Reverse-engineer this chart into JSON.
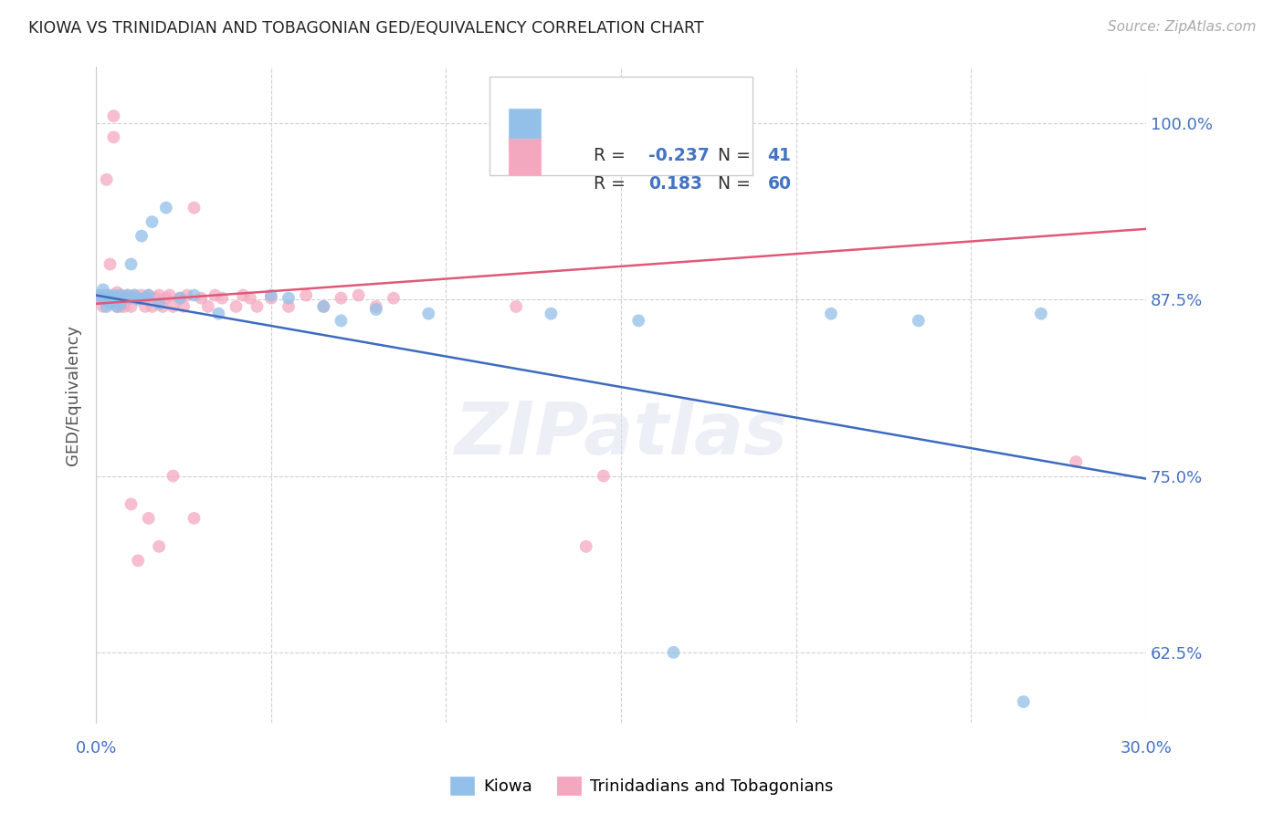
{
  "title": "KIOWA VS TRINIDADIAN AND TOBAGONIAN GED/EQUIVALENCY CORRELATION CHART",
  "source": "Source: ZipAtlas.com",
  "ylabel": "GED/Equivalency",
  "yticks": [
    "62.5%",
    "75.0%",
    "87.5%",
    "100.0%"
  ],
  "legend_label1": "Kiowa",
  "legend_label2": "Trinidadians and Tobagonians",
  "r1": "-0.237",
  "n1": "41",
  "r2": "0.183",
  "n2": "60",
  "color_blue": "#92c0e8",
  "color_pink": "#f4a8c0",
  "color_blue_line": "#3d6bbf",
  "color_pink_line": "#e05878",
  "xlim": [
    0.0,
    0.3
  ],
  "ylim": [
    0.575,
    1.04
  ],
  "ytick_vals": [
    0.625,
    0.75,
    0.875,
    1.0
  ],
  "blue_x": [
    0.001,
    0.002,
    0.002,
    0.003,
    0.003,
    0.004,
    0.004,
    0.005,
    0.005,
    0.006,
    0.006,
    0.007,
    0.007,
    0.008,
    0.009,
    0.01,
    0.01,
    0.011,
    0.012,
    0.013,
    0.014,
    0.015,
    0.016,
    0.018,
    0.02,
    0.024,
    0.028,
    0.035,
    0.05,
    0.055,
    0.065,
    0.07,
    0.08,
    0.095,
    0.13,
    0.155,
    0.165,
    0.21,
    0.235,
    0.265,
    0.27
  ],
  "blue_y": [
    0.878,
    0.875,
    0.882,
    0.87,
    0.878,
    0.876,
    0.872,
    0.875,
    0.878,
    0.876,
    0.87,
    0.878,
    0.872,
    0.876,
    0.878,
    0.9,
    0.876,
    0.878,
    0.875,
    0.92,
    0.876,
    0.878,
    0.93,
    0.872,
    0.94,
    0.876,
    0.878,
    0.865,
    0.878,
    0.876,
    0.87,
    0.86,
    0.868,
    0.865,
    0.865,
    0.86,
    0.625,
    0.865,
    0.86,
    0.59,
    0.865
  ],
  "pink_x": [
    0.001,
    0.002,
    0.002,
    0.003,
    0.004,
    0.004,
    0.005,
    0.005,
    0.006,
    0.006,
    0.007,
    0.007,
    0.008,
    0.008,
    0.009,
    0.01,
    0.01,
    0.011,
    0.012,
    0.013,
    0.014,
    0.015,
    0.015,
    0.016,
    0.017,
    0.018,
    0.019,
    0.02,
    0.021,
    0.022,
    0.024,
    0.025,
    0.026,
    0.028,
    0.03,
    0.032,
    0.034,
    0.036,
    0.04,
    0.042,
    0.044,
    0.046,
    0.05,
    0.055,
    0.06,
    0.065,
    0.07,
    0.075,
    0.08,
    0.085,
    0.01,
    0.012,
    0.015,
    0.018,
    0.022,
    0.028,
    0.12,
    0.14,
    0.145,
    0.28
  ],
  "pink_y": [
    0.876,
    0.878,
    0.87,
    0.96,
    0.878,
    0.9,
    1.005,
    0.99,
    0.88,
    0.87,
    0.878,
    0.87,
    0.876,
    0.87,
    0.878,
    0.876,
    0.87,
    0.878,
    0.876,
    0.878,
    0.87,
    0.876,
    0.878,
    0.87,
    0.876,
    0.878,
    0.87,
    0.876,
    0.878,
    0.87,
    0.876,
    0.87,
    0.878,
    0.94,
    0.876,
    0.87,
    0.878,
    0.876,
    0.87,
    0.878,
    0.876,
    0.87,
    0.876,
    0.87,
    0.878,
    0.87,
    0.876,
    0.878,
    0.87,
    0.876,
    0.73,
    0.69,
    0.72,
    0.7,
    0.75,
    0.72,
    0.87,
    0.7,
    0.75,
    0.76
  ]
}
